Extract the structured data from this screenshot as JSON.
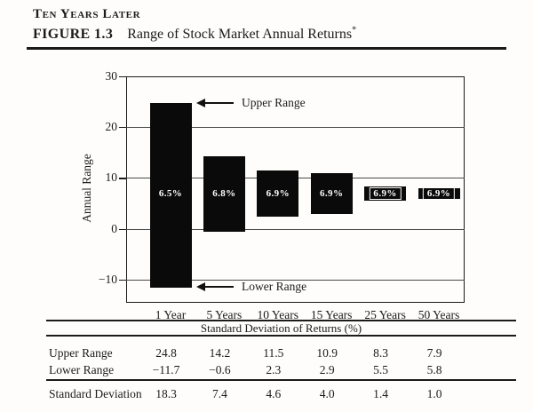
{
  "page": {
    "kicker": "Ten Years Later",
    "figure_label": "FIGURE 1.3",
    "figure_title": "Range of Stock Market Annual Returns",
    "footnote_mark": "*"
  },
  "chart_data": {
    "type": "bar",
    "title": "Range of Stock Market Annual Returns",
    "categories": [
      "1 Year",
      "5 Years",
      "10 Years",
      "15 Years",
      "25 Years",
      "50 Years"
    ],
    "series": [
      {
        "name": "Upper Range",
        "values": [
          24.8,
          14.2,
          11.5,
          10.9,
          8.3,
          7.9
        ]
      },
      {
        "name": "Lower Range",
        "values": [
          -11.7,
          -0.6,
          2.3,
          2.9,
          5.5,
          5.8
        ]
      }
    ],
    "bar_labels": [
      "6.5%",
      "6.8%",
      "6.9%",
      "6.9%",
      "6.9%",
      "6.9%"
    ],
    "xlabel": "",
    "ylabel": "Annual Range",
    "yticks": [
      30,
      20,
      10,
      0,
      -10
    ],
    "ylim": [
      -14.6,
      30
    ],
    "grid": "horizontal",
    "legend": "none",
    "bar_color": "#0a0a0a",
    "bar_label_color": "#ffffff",
    "annotations": [
      {
        "text": "Upper Range",
        "points_to": "top of 1 Year bar",
        "arrow": "left"
      },
      {
        "text": "Lower Range",
        "points_to": "bottom of 1 Year bar",
        "arrow": "left"
      }
    ]
  },
  "table": {
    "span_header": "Standard Deviation of Returns (%)",
    "columns": [
      "1 Year",
      "5 Years",
      "10 Years",
      "15 Years",
      "25 Years",
      "50 Years"
    ],
    "rows": [
      {
        "label": "Upper Range",
        "values": [
          "24.8",
          "14.2",
          "11.5",
          "10.9",
          "8.3",
          "7.9"
        ]
      },
      {
        "label": "Lower Range",
        "values": [
          "−11.7",
          "−0.6",
          "2.3",
          "2.9",
          "5.5",
          "5.8"
        ]
      },
      {
        "label": "Standard Deviation",
        "values": [
          "18.3",
          "7.4",
          "4.6",
          "4.0",
          "1.4",
          "1.0"
        ]
      }
    ]
  }
}
